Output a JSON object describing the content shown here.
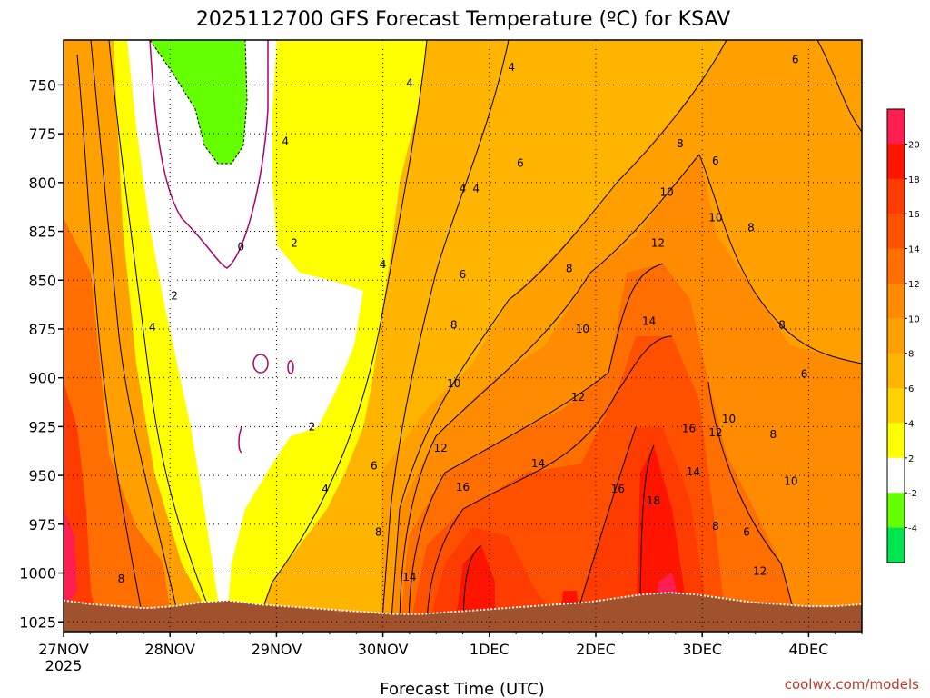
{
  "chart_data": {
    "type": "heatmap",
    "title": "2025112700 GFS Forecast Temperature (ºC) for KSAV",
    "xlabel": "Forecast Time (UTC)",
    "ylabel": "",
    "x_tick_labels": [
      "27NOV",
      "28NOV",
      "29NOV",
      "30NOV",
      "1DEC",
      "2DEC",
      "3DEC",
      "4DEC"
    ],
    "x_year_label": "2025",
    "x_hours": [
      0,
      24,
      48,
      72,
      96,
      120,
      144,
      168
    ],
    "xlim_hours": [
      0,
      180
    ],
    "y_tick_labels": [
      "750",
      "775",
      "800",
      "825",
      "850",
      "875",
      "900",
      "925",
      "950",
      "975",
      "1000",
      "1025"
    ],
    "y_levels_hpa": [
      750,
      775,
      800,
      825,
      850,
      875,
      900,
      925,
      950,
      975,
      1000,
      1025
    ],
    "ylim_hpa": [
      727,
      1030
    ],
    "y_inverted": true,
    "credit": "coolwx.com/models",
    "colorbar": {
      "labels": [
        "20",
        "18",
        "16",
        "14",
        "12",
        "10",
        "8",
        "6",
        "4",
        "2",
        "-2",
        "-4"
      ],
      "bands": [
        {
          "lo": 20,
          "hi": 22,
          "color": "#ff1e50"
        },
        {
          "lo": 18,
          "hi": 20,
          "color": "#ff1400"
        },
        {
          "lo": 16,
          "hi": 18,
          "color": "#ff3c00"
        },
        {
          "lo": 14,
          "hi": 16,
          "color": "#ff5000"
        },
        {
          "lo": 12,
          "hi": 14,
          "color": "#ff6e00"
        },
        {
          "lo": 10,
          "hi": 12,
          "color": "#ff8c00"
        },
        {
          "lo": 8,
          "hi": 10,
          "color": "#ffa000"
        },
        {
          "lo": 6,
          "hi": 8,
          "color": "#ffb400"
        },
        {
          "lo": 4,
          "hi": 6,
          "color": "#ffd200"
        },
        {
          "lo": 2,
          "hi": 4,
          "color": "#ffff00"
        },
        {
          "lo": -2,
          "hi": 2,
          "color": "#ffffff"
        },
        {
          "lo": -4,
          "hi": -2,
          "color": "#64ff00"
        },
        {
          "lo": -6,
          "hi": -4,
          "color": "#00e650"
        }
      ]
    },
    "terrain_color": "#a0522d",
    "terrain_hpa": [
      1014,
      1016,
      1017,
      1018,
      1017,
      1015,
      1014,
      1016,
      1017,
      1018,
      1019,
      1020,
      1021,
      1021,
      1020,
      1019,
      1018,
      1017,
      1016,
      1015,
      1013,
      1011,
      1010,
      1011,
      1013,
      1015,
      1016,
      1017,
      1017,
      1016
    ],
    "contour_labels": [
      {
        "text": "4",
        "hour": 101,
        "hpa": 741
      },
      {
        "text": "4",
        "hour": 78,
        "hpa": 749
      },
      {
        "text": "6",
        "hour": 165,
        "hpa": 737
      },
      {
        "text": "4",
        "hour": 50,
        "hpa": 779
      },
      {
        "text": "8",
        "hour": 139,
        "hpa": 780
      },
      {
        "text": "6",
        "hour": 147,
        "hpa": 789
      },
      {
        "text": "6",
        "hour": 103,
        "hpa": 790
      },
      {
        "text": "4",
        "hour": 90,
        "hpa": 803
      },
      {
        "text": "4",
        "hour": 93,
        "hpa": 803
      },
      {
        "text": "10",
        "hour": 136,
        "hpa": 805
      },
      {
        "text": "10",
        "hour": 147,
        "hpa": 818
      },
      {
        "text": "8",
        "hour": 155,
        "hpa": 823
      },
      {
        "text": "0",
        "hour": 40,
        "hpa": 833
      },
      {
        "text": "2",
        "hour": 52,
        "hpa": 831
      },
      {
        "text": "12",
        "hour": 134,
        "hpa": 831
      },
      {
        "text": "4",
        "hour": 72,
        "hpa": 842
      },
      {
        "text": "8",
        "hour": 114,
        "hpa": 844
      },
      {
        "text": "6",
        "hour": 90,
        "hpa": 847
      },
      {
        "text": "2",
        "hour": 25,
        "hpa": 858
      },
      {
        "text": "4",
        "hour": 20,
        "hpa": 874
      },
      {
        "text": "14",
        "hour": 132,
        "hpa": 871
      },
      {
        "text": "8",
        "hour": 88,
        "hpa": 873
      },
      {
        "text": "10",
        "hour": 117,
        "hpa": 875
      },
      {
        "text": "8",
        "hour": 162,
        "hpa": 873
      },
      {
        "text": "6",
        "hour": 167,
        "hpa": 898
      },
      {
        "text": "10",
        "hour": 88,
        "hpa": 903
      },
      {
        "text": "12",
        "hour": 116,
        "hpa": 910
      },
      {
        "text": "2",
        "hour": 56,
        "hpa": 925
      },
      {
        "text": "16",
        "hour": 141,
        "hpa": 926
      },
      {
        "text": "10",
        "hour": 150,
        "hpa": 921
      },
      {
        "text": "12",
        "hour": 147,
        "hpa": 928
      },
      {
        "text": "8",
        "hour": 160,
        "hpa": 929
      },
      {
        "text": "12",
        "hour": 85,
        "hpa": 936
      },
      {
        "text": "6",
        "hour": 70,
        "hpa": 945
      },
      {
        "text": "14",
        "hour": 107,
        "hpa": 944
      },
      {
        "text": "14",
        "hour": 142,
        "hpa": 948
      },
      {
        "text": "10",
        "hour": 164,
        "hpa": 953
      },
      {
        "text": "4",
        "hour": 59,
        "hpa": 957
      },
      {
        "text": "16",
        "hour": 90,
        "hpa": 956
      },
      {
        "text": "16",
        "hour": 125,
        "hpa": 957
      },
      {
        "text": "18",
        "hour": 133,
        "hpa": 963
      },
      {
        "text": "8",
        "hour": 147,
        "hpa": 976
      },
      {
        "text": "6",
        "hour": 154,
        "hpa": 979
      },
      {
        "text": "8",
        "hour": 71,
        "hpa": 979
      },
      {
        "text": "8",
        "hour": 13,
        "hpa": 1003
      },
      {
        "text": "14",
        "hour": 78,
        "hpa": 1002
      },
      {
        "text": "12",
        "hour": 157,
        "hpa": 999
      }
    ]
  }
}
